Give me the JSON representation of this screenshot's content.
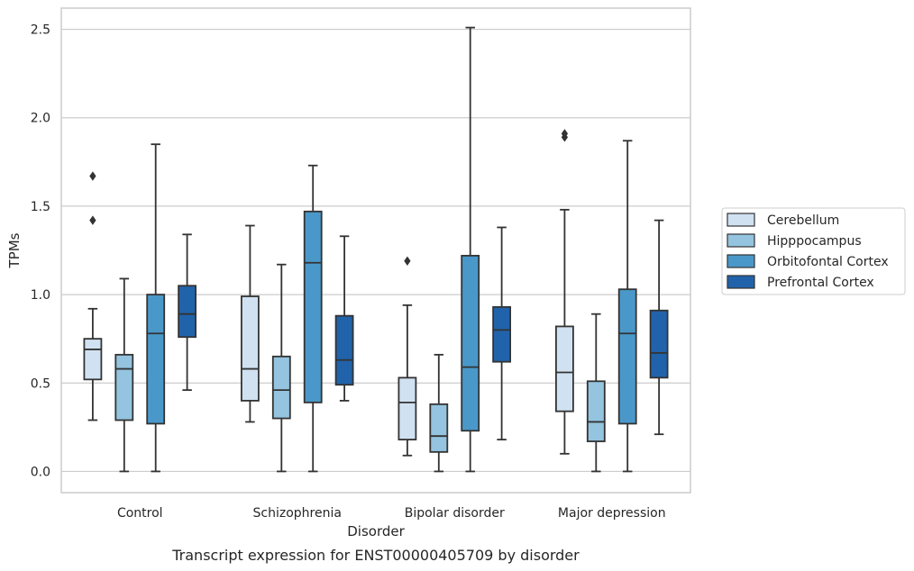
{
  "chart_data": {
    "type": "boxplot",
    "title": "",
    "caption": "Transcript expression for ENST00000405709 by disorder",
    "xlabel": "Disorder",
    "ylabel": "TPMs",
    "ylim": [
      -0.12,
      2.62
    ],
    "yticks": [
      0.0,
      0.5,
      1.0,
      1.5,
      2.0,
      2.5
    ],
    "ytick_labels": [
      "0.0",
      "0.5",
      "1.0",
      "1.5",
      "2.0",
      "2.5"
    ],
    "grid": true,
    "legend_position": "right",
    "categories": [
      "Control",
      "Schizophrenia",
      "Bipolar disorder",
      "Major depression"
    ],
    "series": [
      {
        "name": "Cerebellum",
        "color": "#d0e1f2",
        "boxes": [
          {
            "whislo": 0.29,
            "q1": 0.52,
            "med": 0.69,
            "q3": 0.75,
            "whishi": 0.92,
            "fliers": [
              1.42,
              1.67
            ]
          },
          {
            "whislo": 0.28,
            "q1": 0.4,
            "med": 0.58,
            "q3": 0.99,
            "whishi": 1.39,
            "fliers": []
          },
          {
            "whislo": 0.09,
            "q1": 0.18,
            "med": 0.39,
            "q3": 0.53,
            "whishi": 0.94,
            "fliers": [
              1.19
            ]
          },
          {
            "whislo": 0.1,
            "q1": 0.34,
            "med": 0.56,
            "q3": 0.82,
            "whishi": 1.48,
            "fliers": [
              1.89,
              1.91
            ]
          }
        ]
      },
      {
        "name": "Hipppocampus",
        "color": "#94c4df",
        "boxes": [
          {
            "whislo": 0.0,
            "q1": 0.29,
            "med": 0.58,
            "q3": 0.66,
            "whishi": 1.09,
            "fliers": []
          },
          {
            "whislo": 0.0,
            "q1": 0.3,
            "med": 0.46,
            "q3": 0.65,
            "whishi": 1.17,
            "fliers": []
          },
          {
            "whislo": 0.0,
            "q1": 0.11,
            "med": 0.2,
            "q3": 0.38,
            "whishi": 0.66,
            "fliers": []
          },
          {
            "whislo": 0.0,
            "q1": 0.17,
            "med": 0.28,
            "q3": 0.51,
            "whishi": 0.89,
            "fliers": []
          }
        ]
      },
      {
        "name": "Orbitofontal Cortex",
        "color": "#4a98c9",
        "boxes": [
          {
            "whislo": 0.0,
            "q1": 0.27,
            "med": 0.78,
            "q3": 1.0,
            "whishi": 1.85,
            "fliers": []
          },
          {
            "whislo": 0.0,
            "q1": 0.39,
            "med": 1.18,
            "q3": 1.47,
            "whishi": 1.73,
            "fliers": []
          },
          {
            "whislo": 0.0,
            "q1": 0.23,
            "med": 0.59,
            "q3": 1.22,
            "whishi": 2.51,
            "fliers": []
          },
          {
            "whislo": 0.0,
            "q1": 0.27,
            "med": 0.78,
            "q3": 1.03,
            "whishi": 1.87,
            "fliers": []
          }
        ]
      },
      {
        "name": "Prefrontal Cortex",
        "color": "#2163aa",
        "boxes": [
          {
            "whislo": 0.46,
            "q1": 0.76,
            "med": 0.89,
            "q3": 1.05,
            "whishi": 1.34,
            "fliers": []
          },
          {
            "whislo": 0.4,
            "q1": 0.49,
            "med": 0.63,
            "q3": 0.88,
            "whishi": 1.33,
            "fliers": []
          },
          {
            "whislo": 0.18,
            "q1": 0.62,
            "med": 0.8,
            "q3": 0.93,
            "whishi": 1.38,
            "fliers": []
          },
          {
            "whislo": 0.21,
            "q1": 0.53,
            "med": 0.67,
            "q3": 0.91,
            "whishi": 1.42,
            "fliers": []
          }
        ]
      }
    ]
  }
}
